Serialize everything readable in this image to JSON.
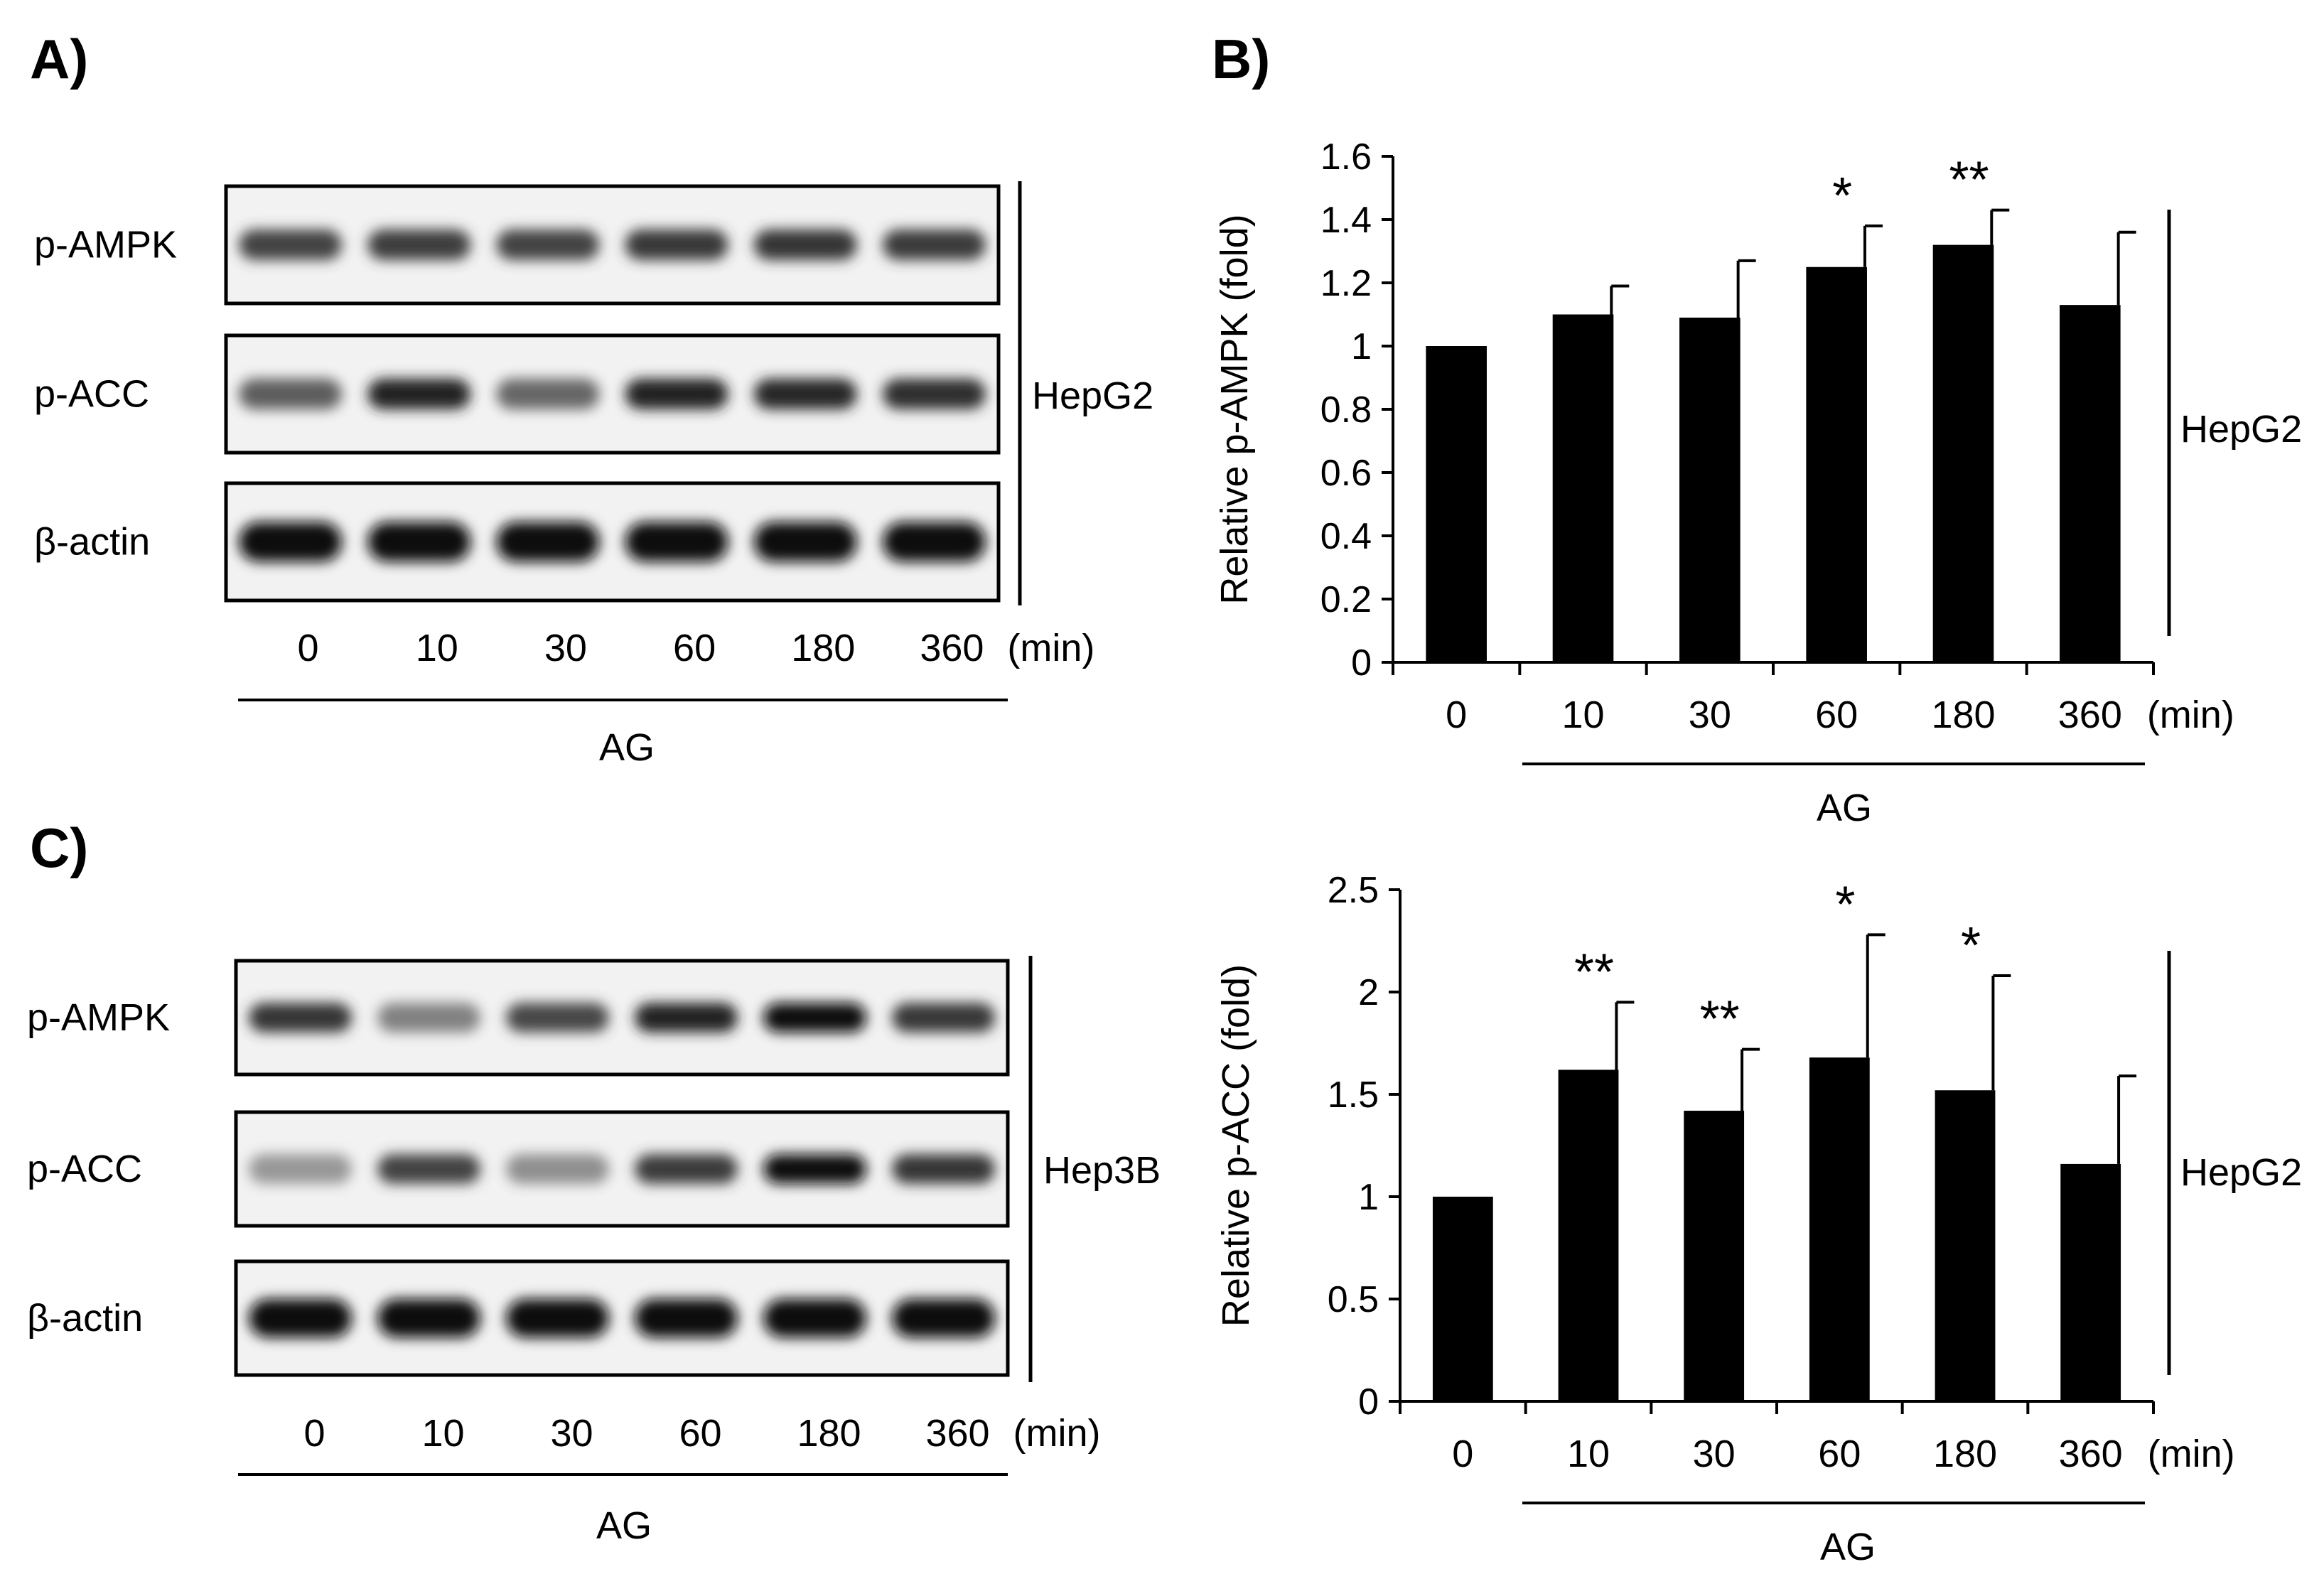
{
  "panels": {
    "a": {
      "letter": "A)",
      "blot": {
        "rows": [
          {
            "label": "p-AMPK",
            "intensity": [
              0.72,
              0.74,
              0.72,
              0.76,
              0.78,
              0.75
            ]
          },
          {
            "label": "p-ACC",
            "intensity": [
              0.62,
              0.86,
              0.6,
              0.86,
              0.84,
              0.8
            ]
          },
          {
            "label": "β-actin",
            "intensity": [
              0.97,
              0.97,
              0.97,
              0.97,
              0.97,
              0.97
            ]
          }
        ],
        "lanes": [
          "0",
          "10",
          "30",
          "60",
          "180",
          "360"
        ],
        "unit": "(min)",
        "cell_line": "HepG2",
        "treatment": "AG"
      }
    },
    "b": {
      "letter": "B)",
      "side_label": "HepG2",
      "treatment": "AG",
      "unit": "(min)"
    },
    "c": {
      "letter": "C)",
      "blot": {
        "rows": [
          {
            "label": "p-AMPK",
            "intensity": [
              0.78,
              0.52,
              0.7,
              0.86,
              0.97,
              0.76
            ]
          },
          {
            "label": "p-ACC",
            "intensity": [
              0.45,
              0.72,
              0.48,
              0.75,
              0.93,
              0.78
            ]
          },
          {
            "label": "β-actin",
            "intensity": [
              0.97,
              0.97,
              0.97,
              0.97,
              0.97,
              0.97
            ]
          }
        ],
        "lanes": [
          "0",
          "10",
          "30",
          "60",
          "180",
          "360"
        ],
        "unit": "(min)",
        "cell_line": "Hep3B",
        "treatment": "AG"
      }
    },
    "d": {
      "side_label": "HepG2",
      "treatment": "AG",
      "unit": "(min)"
    }
  },
  "chart_data": [
    {
      "type": "bar",
      "panel": "B)",
      "categories": [
        "0",
        "10",
        "30",
        "60",
        "180",
        "360"
      ],
      "values": [
        1.0,
        1.1,
        1.09,
        1.25,
        1.32,
        1.13
      ],
      "error": [
        0.01,
        0.09,
        0.18,
        0.13,
        0.11,
        0.23
      ],
      "significance": [
        "",
        "",
        "",
        "*",
        "**",
        ""
      ],
      "ylabel": "Relative p-AMPK (fold)",
      "xlabel": "(min)",
      "ylim": [
        0,
        1.6
      ],
      "yticks": [
        0,
        0.2,
        0.4,
        0.6,
        0.8,
        1,
        1.2,
        1.4,
        1.6
      ],
      "ytick_labels": [
        "0",
        "0.2",
        "0.4",
        "0.6",
        "0.8",
        "1",
        "1.2",
        "1.4",
        "1.6"
      ],
      "bar_color": "#000000",
      "grid": false
    },
    {
      "type": "bar",
      "panel": "D",
      "categories": [
        "0",
        "10",
        "30",
        "60",
        "180",
        "360"
      ],
      "values": [
        1.0,
        1.62,
        1.42,
        1.68,
        1.52,
        1.16
      ],
      "error": [
        0.01,
        0.33,
        0.3,
        0.6,
        0.56,
        0.43
      ],
      "significance": [
        "",
        "**",
        "**",
        "*",
        "*",
        ""
      ],
      "ylabel": "Relative p-ACC (fold)",
      "xlabel": "(min)",
      "ylim": [
        0,
        2.5
      ],
      "yticks": [
        0,
        0.5,
        1,
        1.5,
        2,
        2.5
      ],
      "ytick_labels": [
        "0",
        "0.5",
        "1",
        "1.5",
        "2",
        "2.5"
      ],
      "bar_color": "#000000",
      "grid": false
    }
  ]
}
